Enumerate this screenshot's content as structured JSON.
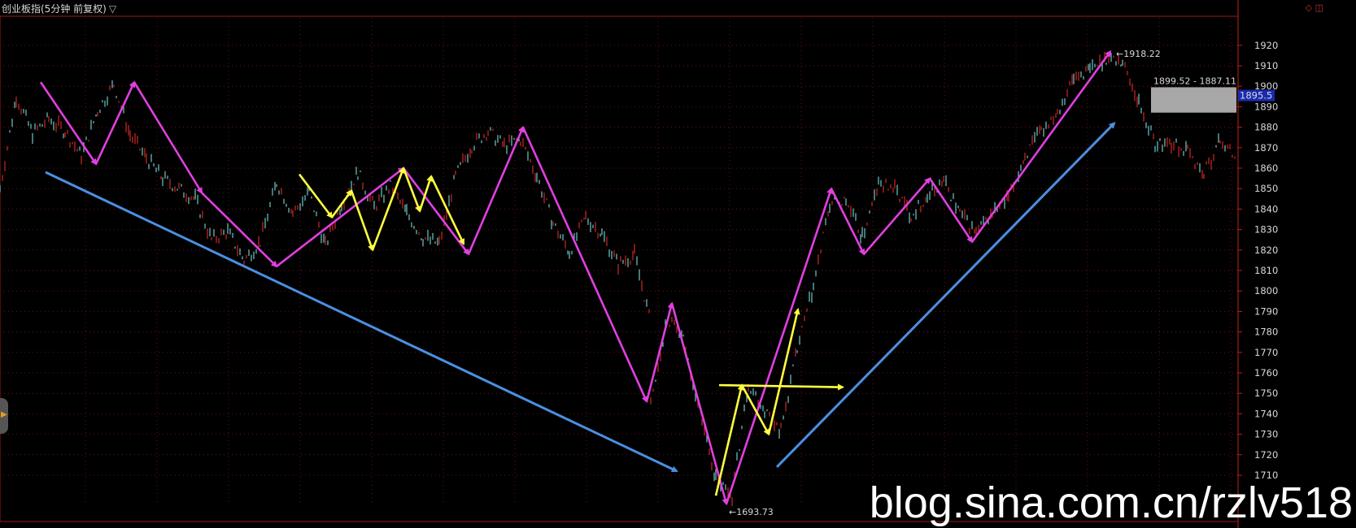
{
  "header": {
    "title": "创业板指(5分钟 前复权)",
    "dropdown_glyph": "▽",
    "icons": [
      "diamond-icon",
      "split-icon"
    ]
  },
  "watermark": "blog.sina.com.cn/rzlv518",
  "chart_data": {
    "type": "line",
    "title": "创业板指(5分钟 前复权)",
    "xlabel": "",
    "ylabel": "",
    "ylim": [
      1700,
      1925
    ],
    "yticks": [
      1710,
      1720,
      1730,
      1740,
      1750,
      1760,
      1770,
      1780,
      1790,
      1800,
      1810,
      1820,
      1830,
      1840,
      1850,
      1860,
      1870,
      1880,
      1890,
      1900,
      1910,
      1920
    ],
    "grid": true,
    "current_price": "1895.5",
    "annotations": {
      "high_label": "1918.22",
      "low_label": "1693.73",
      "range_label": "1899.52 - 1887.11",
      "range_box": [
        1887.11,
        1899.52
      ]
    },
    "price_series": {
      "name": "",
      "x": [
        0,
        20,
        40,
        60,
        80,
        100,
        120,
        140,
        160,
        180,
        200,
        220,
        240,
        260,
        280,
        300,
        320,
        340,
        360,
        380,
        400,
        420,
        440,
        460,
        480,
        500,
        520,
        540,
        560,
        580,
        600,
        620,
        640,
        660,
        680,
        700,
        720,
        740,
        760,
        780,
        800
      ],
      "y": [
        1850,
        1895,
        1877,
        1884,
        1878,
        1866,
        1888,
        1901,
        1876,
        1865,
        1855,
        1850,
        1845,
        1825,
        1829,
        1815,
        1824,
        1853,
        1838,
        1848,
        1822,
        1843,
        1858,
        1841,
        1851,
        1838,
        1826,
        1823,
        1856,
        1871,
        1878,
        1871,
        1874,
        1856,
        1833,
        1819,
        1836,
        1828,
        1813,
        1818,
        1784
      ]
    },
    "price_series_2": {
      "name": "",
      "x": [
        800,
        820,
        840,
        860,
        880,
        900,
        920,
        940,
        960,
        980,
        1000,
        1020,
        1040,
        1060,
        1080,
        1100,
        1120,
        1140,
        1160,
        1180,
        1200,
        1220,
        1240,
        1260,
        1280,
        1300,
        1320,
        1340,
        1360,
        1380,
        1400,
        1420,
        1440,
        1460,
        1480,
        1500,
        1520
      ],
      "y": [
        1745,
        1787,
        1776,
        1742,
        1708,
        1700,
        1755,
        1742,
        1732,
        1771,
        1802,
        1842,
        1844,
        1826,
        1852,
        1850,
        1837,
        1846,
        1854,
        1838,
        1828,
        1838,
        1845,
        1866,
        1878,
        1888,
        1904,
        1908,
        1914,
        1912,
        1892,
        1872,
        1872,
        1868,
        1857,
        1874,
        1864
      ]
    },
    "trend_lines": [
      {
        "color": "#e040e0",
        "points": [
          [
            50,
            1902
          ],
          [
            118,
            1862
          ],
          [
            165,
            1902
          ],
          [
            248,
            1848
          ],
          [
            340,
            1812
          ],
          [
            496,
            1860
          ],
          [
            576,
            1818
          ],
          [
            643,
            1880
          ],
          [
            795,
            1746
          ],
          [
            826,
            1794
          ],
          [
            893,
            1696
          ],
          [
            1022,
            1850
          ],
          [
            1062,
            1818
          ],
          [
            1143,
            1855
          ],
          [
            1195,
            1824
          ],
          [
            1365,
            1917
          ]
        ]
      },
      {
        "color": "#ffff40",
        "points": [
          [
            368,
            1857
          ],
          [
            408,
            1836
          ],
          [
            432,
            1849
          ],
          [
            458,
            1820
          ],
          [
            496,
            1860
          ],
          [
            516,
            1839
          ],
          [
            530,
            1856
          ],
          [
            570,
            1823
          ]
        ]
      },
      {
        "color": "#ffff40",
        "points": [
          [
            880,
            1700
          ],
          [
            912,
            1754
          ],
          [
            945,
            1730
          ],
          [
            981,
            1791
          ]
        ]
      },
      {
        "color": "#ffff40",
        "points": [
          [
            884,
            1754
          ],
          [
            1036,
            1753
          ]
        ]
      },
      {
        "color": "#4a90e2",
        "points": [
          [
            56,
            1858
          ],
          [
            832,
            1712
          ]
        ]
      },
      {
        "color": "#4a90e2",
        "points": [
          [
            955,
            1714
          ],
          [
            1370,
            1882
          ]
        ]
      }
    ]
  }
}
